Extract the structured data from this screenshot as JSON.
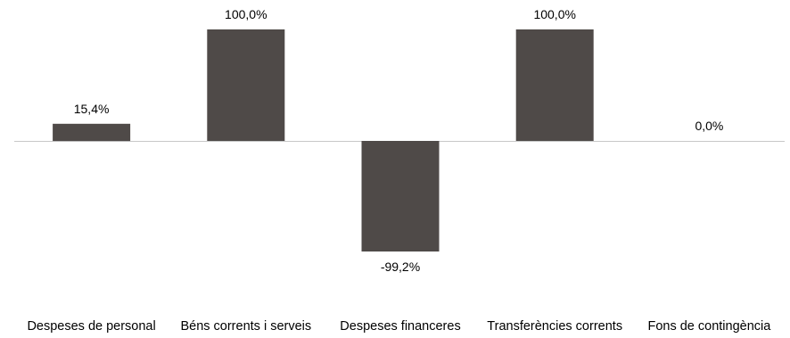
{
  "chart_data": {
    "type": "bar",
    "categories": [
      "Despeses de personal",
      "Béns corrents i serveis",
      "Despeses financeres",
      "Transferències corrents",
      "Fons de contingència"
    ],
    "values": [
      15.4,
      100.0,
      -99.2,
      100.0,
      0.0
    ],
    "data_labels": [
      "15,4%",
      "100,0%",
      "-99,2%",
      "100,0%",
      "0,0%"
    ],
    "title": "",
    "xlabel": "",
    "ylabel": "",
    "ylim": [
      -100,
      100
    ],
    "grid": false,
    "legend": "none",
    "bar_color": "#4f4a48"
  }
}
